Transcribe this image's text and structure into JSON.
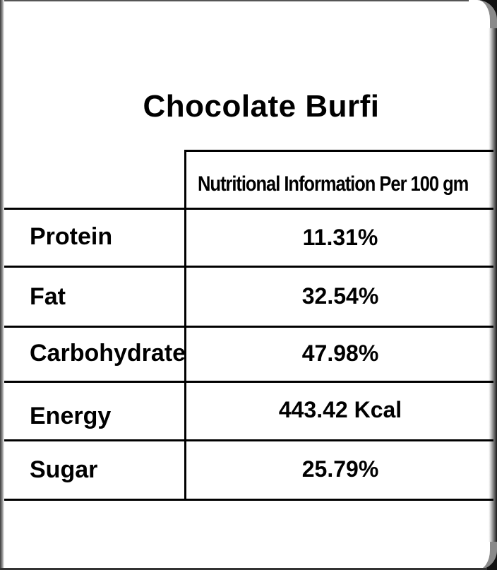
{
  "title": "Chocolate Burfi",
  "table": {
    "header": "Nutritional Information Per 100 gm",
    "rows": [
      {
        "label": "Protein",
        "value": "11.31%"
      },
      {
        "label": "Fat",
        "value": "32.54%"
      },
      {
        "label": "Carbohydrate",
        "value": "47.98%"
      },
      {
        "label": "Energy",
        "value": "443.42 Kcal"
      },
      {
        "label": "Sugar",
        "value": "25.79%"
      }
    ]
  }
}
